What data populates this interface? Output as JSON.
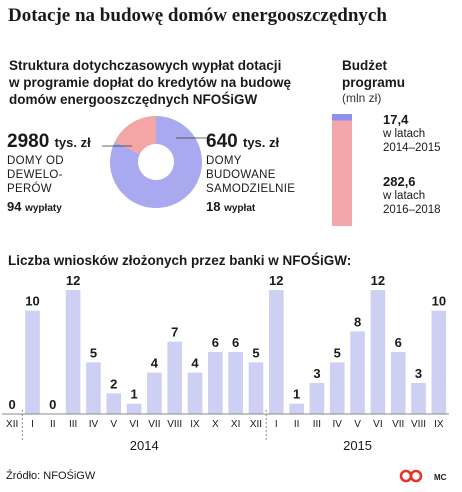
{
  "title": "Dotacje na budowę domów energooszczędnych",
  "structure": {
    "title_lines": [
      "Struktura dotychczasowych wypłat dotacji",
      "w programie dopłat do kredytów na budowę",
      "domów energooszczędnych NFOŚiGW"
    ],
    "left": {
      "amount": "2980",
      "unit": "tys. zł",
      "label_lines": [
        "DOMY OD",
        "DEWELO-",
        "PERÓW"
      ],
      "count": "94",
      "count_unit": "wypłaty"
    },
    "right": {
      "amount": "640",
      "unit": "tys. zł",
      "label_lines": [
        "DOMY",
        "BUDOWANE",
        "SAMODZIELNIE"
      ],
      "count": "18",
      "count_unit": "wypłat"
    }
  },
  "budget": {
    "title_lines": [
      "Budżet",
      "programu"
    ],
    "unit": "(mln zł)",
    "items": [
      {
        "value": "17,4",
        "lines": [
          "w latach",
          "2014–2015"
        ]
      },
      {
        "value": "282,6",
        "lines": [
          "w latach",
          "2016–2018"
        ]
      }
    ]
  },
  "bars_title": "Liczba wniosków złożonych przez banki w NFOŚiGW:",
  "source": "Źródło: NFOŚiGW",
  "credit": "MC",
  "colors": {
    "bar": "#cdd0f2",
    "pie_developers": "#a9a9f0",
    "pie_self": "#f4a6a6",
    "budget_small": "#8f8ff0",
    "budget_large": "#f2a7ab",
    "logo": "#e8322b"
  },
  "chart_data": [
    {
      "type": "pie",
      "title": "",
      "categories": [
        "DOMY OD DEWELOPERÓW",
        "DOMY BUDOWANE SAMODZIELNIE"
      ],
      "values": [
        2980,
        640
      ],
      "unit": "tys. zł",
      "counts": [
        94,
        18
      ],
      "donut": true
    },
    {
      "type": "bar",
      "title": "Budżet programu",
      "ylabel": "(mln zł)",
      "categories": [
        "2014–2015",
        "2016–2018"
      ],
      "values": [
        17.4,
        282.6
      ],
      "stacked": true
    },
    {
      "type": "bar",
      "title": "Liczba wniosków złożonych przez banki w NFOŚiGW:",
      "categories": [
        "XII",
        "I",
        "II",
        "III",
        "IV",
        "V",
        "VI",
        "VII",
        "VIII",
        "IX",
        "X",
        "XI",
        "XII",
        "I",
        "II",
        "III",
        "IV",
        "V",
        "VI",
        "VII",
        "VIII",
        "IX"
      ],
      "values": [
        0,
        10,
        0,
        12,
        5,
        2,
        1,
        4,
        7,
        4,
        6,
        6,
        5,
        12,
        1,
        3,
        5,
        8,
        12,
        6,
        3,
        10
      ],
      "year_groups": [
        {
          "label": "2014",
          "first": 1,
          "last": 12
        },
        {
          "label": "2015",
          "first": 13,
          "last": 21
        }
      ],
      "ylim": [
        0,
        12
      ],
      "grid": false
    }
  ]
}
